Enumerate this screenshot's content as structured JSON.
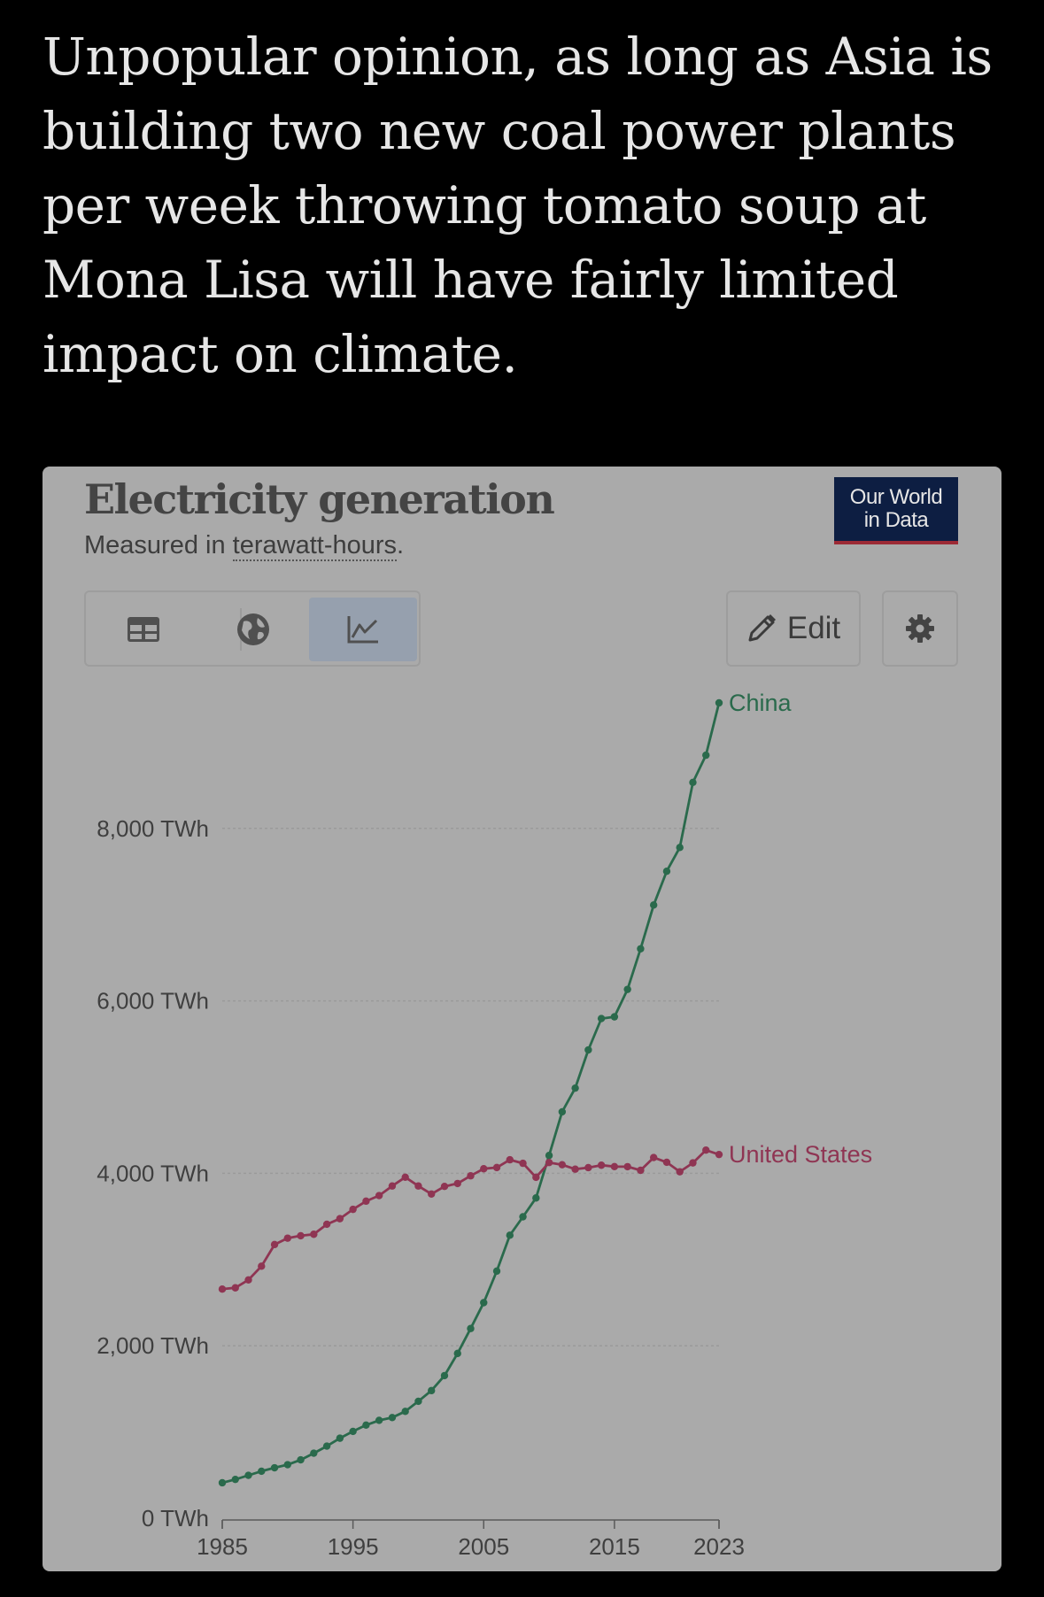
{
  "post": {
    "text": "Unpopular opinion, as long as Asia is building two new coal power plants per week throwing tomato soup at Mona Lisa will have fairly limited impact on climate."
  },
  "card": {
    "title": "Electricity generation",
    "subtitle_prefix": "Measured in ",
    "subtitle_link": "terawatt-hours",
    "subtitle_suffix": ".",
    "logo_line1": "Our World",
    "logo_line2": "in Data",
    "toggle_icons": [
      "table-icon",
      "globe-icon",
      "line-chart-icon"
    ],
    "active_toggle": "line-chart-icon",
    "edit_label": "Edit",
    "edit_icon": "pencil-icon",
    "settings_icon": "gear-icon"
  },
  "colors": {
    "background": "#000000",
    "card": "#aaaaaa",
    "china": "#2a6a4c",
    "united_states": "#8f3553",
    "grid": "#9a9a9a"
  },
  "chart_data": {
    "type": "line",
    "title": "Electricity generation",
    "subtitle": "Measured in terawatt-hours.",
    "xlabel": "",
    "ylabel": "",
    "y_ticks": [
      "0 TWh",
      "2,000 TWh",
      "4,000 TWh",
      "6,000 TWh",
      "8,000 TWh"
    ],
    "y_tick_values": [
      0,
      2000,
      4000,
      6000,
      8000
    ],
    "x_ticks": [
      "1985",
      "1995",
      "2005",
      "2015",
      "2023"
    ],
    "x_tick_values": [
      1985,
      1995,
      2005,
      2015,
      2023
    ],
    "xlim": [
      1985,
      2023
    ],
    "ylim": [
      0,
      9600
    ],
    "grid": true,
    "legend": "inline-labels-right",
    "x": [
      1985,
      1986,
      1987,
      1988,
      1989,
      1990,
      1991,
      1992,
      1993,
      1994,
      1995,
      1996,
      1997,
      1998,
      1999,
      2000,
      2001,
      2002,
      2003,
      2004,
      2005,
      2006,
      2007,
      2008,
      2009,
      2010,
      2011,
      2012,
      2013,
      2014,
      2015,
      2016,
      2017,
      2018,
      2019,
      2020,
      2021,
      2022,
      2023
    ],
    "series": [
      {
        "name": "China",
        "values": [
          411,
          450,
          497,
          545,
          585,
          621,
          677,
          754,
          836,
          928,
          1007,
          1080,
          1135,
          1167,
          1239,
          1356,
          1480,
          1654,
          1911,
          2200,
          2500,
          2866,
          3282,
          3496,
          3714,
          4207,
          4713,
          4988,
          5431,
          5795,
          5815,
          6133,
          6604,
          7112,
          7503,
          7779,
          8534,
          8849,
          9456
        ]
      },
      {
        "name": "United States",
        "values": [
          2657,
          2672,
          2764,
          2923,
          3174,
          3248,
          3276,
          3293,
          3409,
          3474,
          3582,
          3677,
          3742,
          3853,
          3955,
          3853,
          3760,
          3848,
          3882,
          3971,
          4053,
          4067,
          4157,
          4116,
          3954,
          4125,
          4100,
          4048,
          4066,
          4094,
          4078,
          4077,
          4035,
          4183,
          4128,
          4018,
          4121,
          4269,
          4218
        ]
      }
    ]
  }
}
